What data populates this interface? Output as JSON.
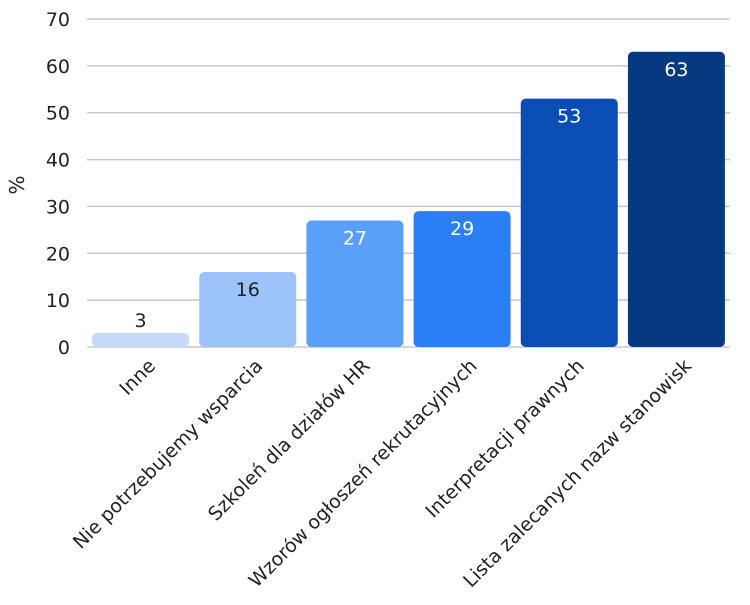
{
  "chart_data": {
    "type": "bar",
    "ylabel": "%",
    "ylim": [
      0,
      70
    ],
    "yticks": [
      0,
      10,
      20,
      30,
      40,
      50,
      60,
      70
    ],
    "grid": true,
    "categories": [
      "Inne",
      "Nie potrzebujemy wsparcia",
      "Szkoleń dla działów HR",
      "Wzorów ogłoszeń rekrutacyjnych",
      "Interpretacji prawnych",
      "Lista zalecanych nazw stanowisk"
    ],
    "values": [
      3,
      16,
      27,
      29,
      53,
      63
    ],
    "colors": [
      "#c5dafc",
      "#9dc3fb",
      "#5ba0f8",
      "#2a7ff6",
      "#0a4eb5",
      "#063a80"
    ],
    "label_colors": [
      "#222222",
      "#222222",
      "#ffffff",
      "#ffffff",
      "#ffffff",
      "#ffffff"
    ]
  }
}
